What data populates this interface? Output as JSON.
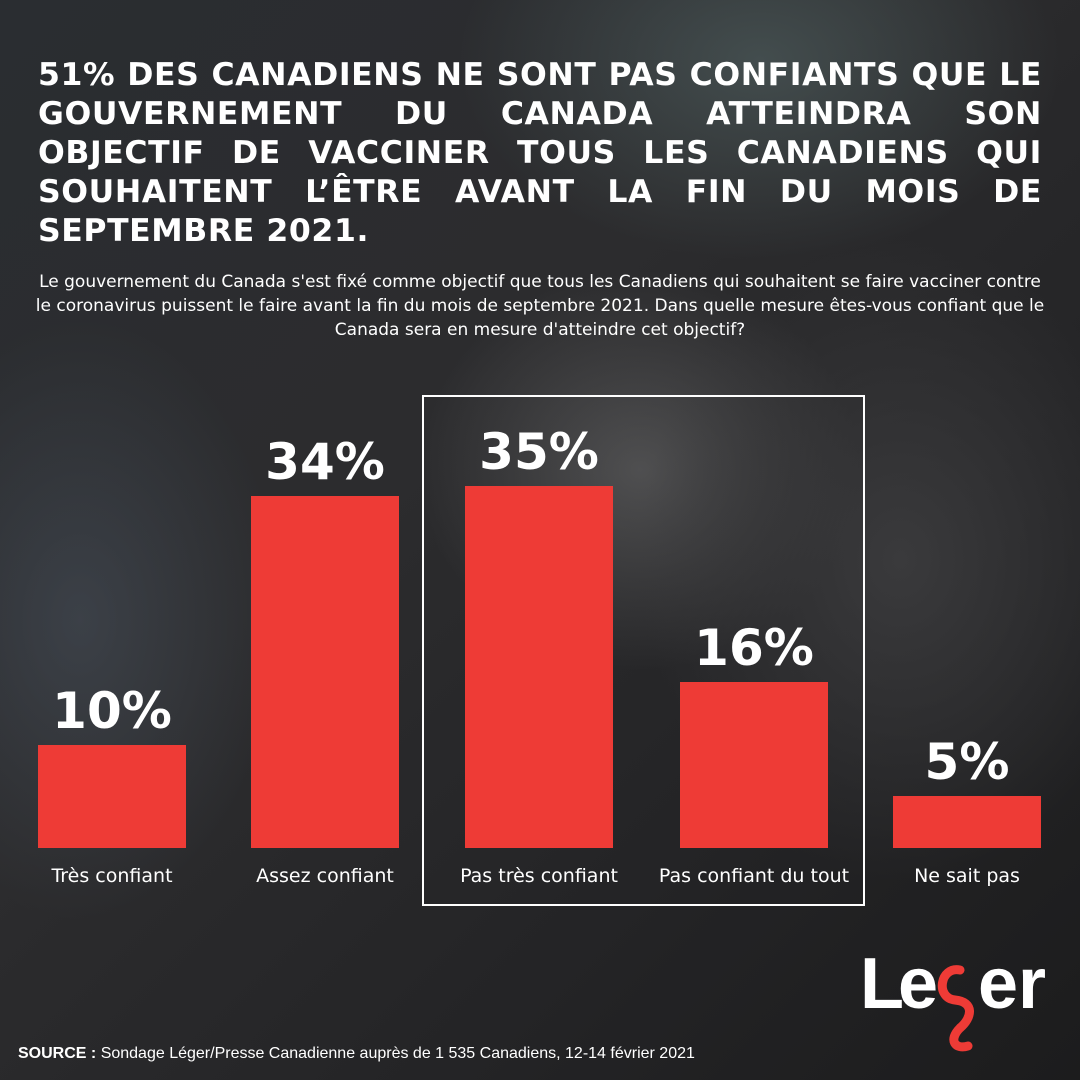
{
  "title": "51% DES CANADIENS NE SONT PAS CONFIANTS QUE LE GOUVERNEMENT DU CANADA ATTEINDRA SON OBJECTIF DE VACCINER TOUS LES CANADIENS QUI SOUHAITENT L’ÊTRE AVANT LA FIN DU MOIS DE SEPTEMBRE 2021.",
  "subtitle": "Le gouvernement du Canada s'est fixé comme objectif que tous les Canadiens qui souhaitent se faire vacciner contre le coronavirus puissent le faire avant la fin du mois de septembre 2021. Dans quelle mesure êtes-vous confiant que le Canada sera en mesure d'atteindre cet objectif?",
  "chart_data": {
    "type": "bar",
    "categories": [
      "Très confiant",
      "Assez confiant",
      "Pas très confiant",
      "Pas confiant du tout",
      "Ne sait pas"
    ],
    "values": [
      10,
      34,
      35,
      16,
      5
    ],
    "data_labels": [
      "10%",
      "34%",
      "35%",
      "16%",
      "5%"
    ],
    "bar_color": "#ee3b36",
    "highlighted_categories": [
      "Pas très confiant",
      "Pas confiant du tout"
    ],
    "grid": false,
    "ylim": [
      0,
      35
    ]
  },
  "logo": {
    "text": "Léger",
    "accent_color": "#ee3b36"
  },
  "source": {
    "label": "SOURCE :",
    "text": "Sondage Léger/Presse Canadienne auprès de 1 535 Canadiens, 12-14 février 2021"
  }
}
